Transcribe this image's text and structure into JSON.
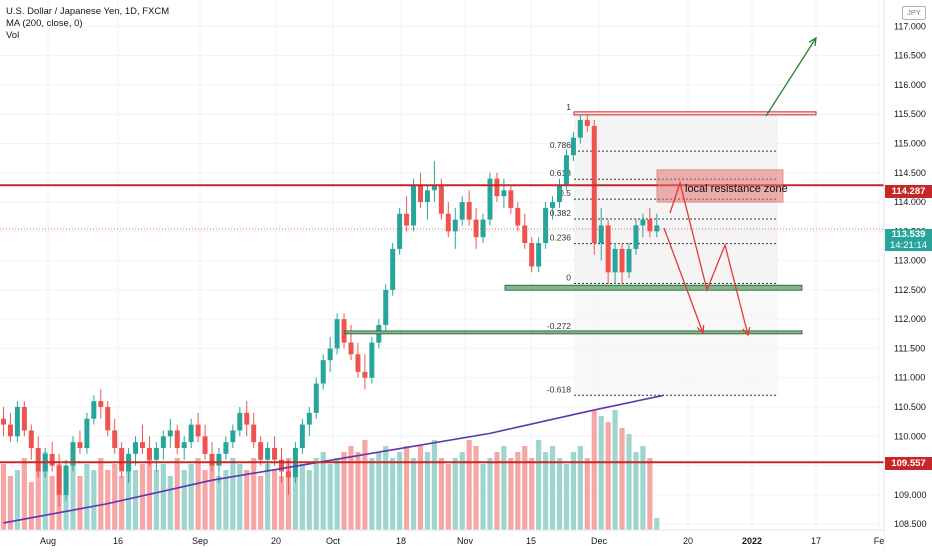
{
  "legend": {
    "symbol": "U.S. Dollar / Japanese Yen, 1D, FXCM",
    "ma": "MA (200, close, 0)",
    "vol": "Vol"
  },
  "currency_button": "JPY",
  "price_axis": {
    "ticks": [
      "117.000",
      "116.500",
      "116.000",
      "115.500",
      "115.000",
      "114.500",
      "114.000",
      "113.500",
      "113.000",
      "112.500",
      "112.000",
      "111.500",
      "111.000",
      "110.500",
      "110.000",
      "109.500",
      "109.000",
      "108.500"
    ],
    "tick_values": [
      117.0,
      116.5,
      116.0,
      115.5,
      115.0,
      114.5,
      114.0,
      113.5,
      113.0,
      112.5,
      112.0,
      111.5,
      111.0,
      110.5,
      110.0,
      109.5,
      109.0,
      108.5
    ],
    "label_resistance": "114.287",
    "label_current": "113.539",
    "label_countdown": "14:21:14",
    "label_support": "109.557"
  },
  "time_axis": {
    "labels": [
      "Aug",
      "16",
      "Sep",
      "20",
      "Oct",
      "18",
      "Nov",
      "15",
      "Dec",
      "20",
      "2022",
      "17",
      "Fe"
    ]
  },
  "fib": {
    "labels": [
      "1",
      "0.786",
      "0.618",
      "0.5",
      "0.382",
      "0.236",
      "0",
      "-0.272",
      "-0.618"
    ],
    "levels": [
      115.52,
      114.87,
      114.39,
      114.05,
      113.71,
      113.29,
      112.61,
      111.78,
      110.7
    ]
  },
  "annotations": {
    "zone_label": "local resistance zone",
    "horizontal_lines": [
      114.287,
      109.557
    ]
  },
  "colors": {
    "bull": "#26a69a",
    "bear": "#ef5350",
    "line_red": "#c62828",
    "ma": "#5e35b1",
    "current": "#26a69a",
    "vol_bull": "#9ed5cf",
    "vol_bear": "#f5a7a6",
    "zone_fill": "#e57373",
    "box_green": "#81b58e",
    "arrow_green": "#2e7d32",
    "arrow_red": "#e53935"
  },
  "chart_data": {
    "type": "candlestick",
    "title": "U.S. Dollar / Japanese Yen, 1D, FXCM",
    "ylim": [
      108.4,
      117.45
    ],
    "candles": [
      [
        110.3,
        110.5,
        110.0,
        110.2
      ],
      [
        110.2,
        110.4,
        109.9,
        110.0
      ],
      [
        110.0,
        110.6,
        109.9,
        110.5
      ],
      [
        110.5,
        110.6,
        110.0,
        110.1
      ],
      [
        110.1,
        110.2,
        109.6,
        109.8
      ],
      [
        109.8,
        110.0,
        109.3,
        109.4
      ],
      [
        109.4,
        109.8,
        109.3,
        109.7
      ],
      [
        109.7,
        109.9,
        109.4,
        109.5
      ],
      [
        109.5,
        109.7,
        108.8,
        109.0
      ],
      [
        109.0,
        109.6,
        108.9,
        109.5
      ],
      [
        109.5,
        110.0,
        109.4,
        109.9
      ],
      [
        109.9,
        110.1,
        109.7,
        109.8
      ],
      [
        109.8,
        110.4,
        109.7,
        110.3
      ],
      [
        110.3,
        110.7,
        110.2,
        110.6
      ],
      [
        110.6,
        110.8,
        110.3,
        110.5
      ],
      [
        110.5,
        110.6,
        110.0,
        110.1
      ],
      [
        110.1,
        110.3,
        109.7,
        109.8
      ],
      [
        109.8,
        109.9,
        109.3,
        109.4
      ],
      [
        109.4,
        109.8,
        109.2,
        109.7
      ],
      [
        109.7,
        110.0,
        109.5,
        109.9
      ],
      [
        109.9,
        110.2,
        109.7,
        109.8
      ],
      [
        109.8,
        110.0,
        109.5,
        109.6
      ],
      [
        109.6,
        109.9,
        109.4,
        109.8
      ],
      [
        109.8,
        110.1,
        109.6,
        110.0
      ],
      [
        110.0,
        110.3,
        109.8,
        110.1
      ],
      [
        110.1,
        110.2,
        109.7,
        109.8
      ],
      [
        109.8,
        110.0,
        109.6,
        109.9
      ],
      [
        109.9,
        110.3,
        109.8,
        110.2
      ],
      [
        110.2,
        110.4,
        109.9,
        110.0
      ],
      [
        110.0,
        110.2,
        109.6,
        109.7
      ],
      [
        109.7,
        109.9,
        109.4,
        109.5
      ],
      [
        109.5,
        109.8,
        109.2,
        109.7
      ],
      [
        109.7,
        110.0,
        109.6,
        109.9
      ],
      [
        109.9,
        110.2,
        109.8,
        110.1
      ],
      [
        110.1,
        110.5,
        110.0,
        110.4
      ],
      [
        110.4,
        110.6,
        110.0,
        110.2
      ],
      [
        110.2,
        110.4,
        109.8,
        109.9
      ],
      [
        109.9,
        110.0,
        109.5,
        109.6
      ],
      [
        109.6,
        109.9,
        109.4,
        109.8
      ],
      [
        109.8,
        110.0,
        109.5,
        109.6
      ],
      [
        109.6,
        109.8,
        109.2,
        109.4
      ],
      [
        109.4,
        109.6,
        109.0,
        109.3
      ],
      [
        109.3,
        109.9,
        109.2,
        109.8
      ],
      [
        109.8,
        110.3,
        109.7,
        110.2
      ],
      [
        110.2,
        110.5,
        110.0,
        110.4
      ],
      [
        110.4,
        111.0,
        110.3,
        110.9
      ],
      [
        110.9,
        111.4,
        110.8,
        111.3
      ],
      [
        111.3,
        111.7,
        111.1,
        111.5
      ],
      [
        111.5,
        112.1,
        111.4,
        112.0
      ],
      [
        112.0,
        112.1,
        111.5,
        111.6
      ],
      [
        111.6,
        111.9,
        111.3,
        111.4
      ],
      [
        111.4,
        111.6,
        111.0,
        111.1
      ],
      [
        111.1,
        111.4,
        110.8,
        111.0
      ],
      [
        111.0,
        111.7,
        110.9,
        111.6
      ],
      [
        111.6,
        112.0,
        111.5,
        111.9
      ],
      [
        111.9,
        112.6,
        111.8,
        112.5
      ],
      [
        112.5,
        113.3,
        112.4,
        113.2
      ],
      [
        113.2,
        113.9,
        113.1,
        113.8
      ],
      [
        113.8,
        114.1,
        113.5,
        113.6
      ],
      [
        113.6,
        114.4,
        113.5,
        114.3
      ],
      [
        114.3,
        114.5,
        113.9,
        114.0
      ],
      [
        114.0,
        114.3,
        113.7,
        114.2
      ],
      [
        114.2,
        114.7,
        114.0,
        114.3
      ],
      [
        114.3,
        114.4,
        113.7,
        113.8
      ],
      [
        113.8,
        114.0,
        113.4,
        113.5
      ],
      [
        113.5,
        113.9,
        113.2,
        113.7
      ],
      [
        113.7,
        114.1,
        113.6,
        114.0
      ],
      [
        114.0,
        114.2,
        113.6,
        113.7
      ],
      [
        113.7,
        113.9,
        113.2,
        113.4
      ],
      [
        113.4,
        113.8,
        113.3,
        113.7
      ],
      [
        113.7,
        114.5,
        113.6,
        114.4
      ],
      [
        114.4,
        114.5,
        114.0,
        114.1
      ],
      [
        114.1,
        114.4,
        113.9,
        114.2
      ],
      [
        114.2,
        114.3,
        113.8,
        113.9
      ],
      [
        113.9,
        114.0,
        113.5,
        113.6
      ],
      [
        113.6,
        113.8,
        113.2,
        113.3
      ],
      [
        113.3,
        113.4,
        112.8,
        112.9
      ],
      [
        112.9,
        113.4,
        112.8,
        113.3
      ],
      [
        113.3,
        114.0,
        113.2,
        113.9
      ],
      [
        113.9,
        114.1,
        113.7,
        114.0
      ],
      [
        114.0,
        114.4,
        113.9,
        114.3
      ],
      [
        114.3,
        114.9,
        114.2,
        114.8
      ],
      [
        114.8,
        115.2,
        114.7,
        115.1
      ],
      [
        115.1,
        115.5,
        115.0,
        115.4
      ],
      [
        115.4,
        115.5,
        115.2,
        115.3
      ],
      [
        115.3,
        115.4,
        113.1,
        113.3
      ],
      [
        113.3,
        113.9,
        113.0,
        113.6
      ],
      [
        113.6,
        113.7,
        112.6,
        112.8
      ],
      [
        112.8,
        113.3,
        112.6,
        113.2
      ],
      [
        113.2,
        113.3,
        112.6,
        112.8
      ],
      [
        112.8,
        113.3,
        112.7,
        113.2
      ],
      [
        113.2,
        113.7,
        113.1,
        113.6
      ],
      [
        113.6,
        113.8,
        113.4,
        113.7
      ],
      [
        113.7,
        113.9,
        113.4,
        113.5
      ],
      [
        113.5,
        113.8,
        113.4,
        113.6
      ]
    ],
    "volume_relative": [
      0.55,
      0.45,
      0.5,
      0.6,
      0.4,
      0.5,
      0.65,
      0.45,
      0.55,
      0.5,
      0.6,
      0.45,
      0.55,
      0.5,
      0.6,
      0.5,
      0.55,
      0.45,
      0.6,
      0.5,
      0.55,
      0.6,
      0.5,
      0.55,
      0.45,
      0.6,
      0.5,
      0.55,
      0.6,
      0.5,
      0.55,
      0.45,
      0.5,
      0.6,
      0.55,
      0.5,
      0.6,
      0.45,
      0.55,
      0.5,
      0.45,
      0.6,
      0.5,
      0.55,
      0.5,
      0.6,
      0.65,
      0.55,
      0.6,
      0.65,
      0.7,
      0.65,
      0.75,
      0.6,
      0.65,
      0.7,
      0.6,
      0.65,
      0.7,
      0.6,
      0.7,
      0.65,
      0.75,
      0.6,
      0.55,
      0.6,
      0.65,
      0.75,
      0.7,
      0.55,
      0.6,
      0.65,
      0.7,
      0.6,
      0.65,
      0.7,
      0.6,
      0.75,
      0.65,
      0.7,
      0.6,
      0.55,
      0.65,
      0.7,
      0.6,
      1.0,
      0.95,
      0.9,
      1.0,
      0.85,
      0.8,
      0.65,
      0.7,
      0.6,
      0.1
    ],
    "ma": {
      "name": "MA (200, close, 0)",
      "points": [
        [
          0,
          108.52
        ],
        [
          15,
          108.85
        ],
        [
          30,
          109.25
        ],
        [
          45,
          109.55
        ],
        [
          55,
          109.75
        ],
        [
          70,
          110.05
        ],
        [
          85,
          110.45
        ],
        [
          95,
          110.7
        ]
      ]
    }
  }
}
